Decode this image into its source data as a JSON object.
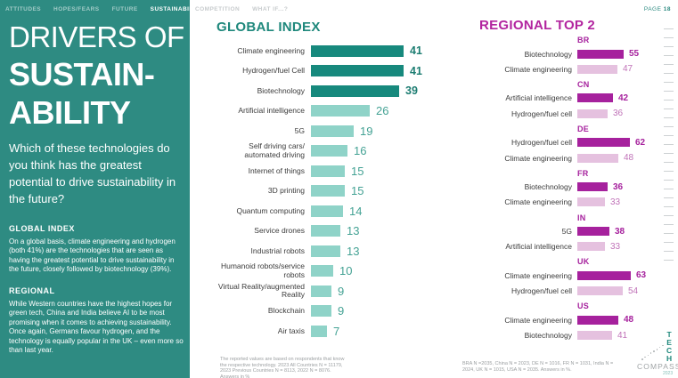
{
  "topnav": {
    "teal_tabs": [
      "ATTITUDES",
      "HOPES/FEARS",
      "FUTURE",
      "SUSTAINABILITY"
    ],
    "active_tab": "SUSTAINABILITY",
    "white_tabs": [
      "COMPETITION",
      "WHAT IF...?"
    ],
    "page_label": "PAGE",
    "page_number": "18"
  },
  "sidebar": {
    "title_line1": "DRIVERS OF",
    "title_line2": "SUSTAIN-",
    "title_line3": "ABILITY",
    "question": "Which of these technologies do you think has the greatest potential to drive sustainability in the future?",
    "global_heading": "GLOBAL INDEX",
    "global_text": "On a global basis, climate engineering and hydrogen (both 41%) are the technologies that are seen as having the greatest potential to drive sustainability in the future, closely followed by biotechnology (39%).",
    "regional_heading": "REGIONAL",
    "regional_text": "While Western countries have the highest hopes for green tech, China and India believe AI to be most promising when it comes to achieving sustainability. Once again, Germans favour hydrogen, and the technology is equally popular in the UK – even more so than last year."
  },
  "chart_data": [
    {
      "id": "global_index",
      "type": "bar",
      "orientation": "horizontal",
      "title": "GLOBAL INDEX",
      "unit": "%",
      "xlim": [
        0,
        45
      ],
      "grid": false,
      "legend": false,
      "value_labels": true,
      "emphasized_top_n": 3,
      "categories": [
        "Climate engineering",
        "Hydrogen/fuel Cell",
        "Biotechnology",
        "Artificial intelligence",
        "5G",
        "Self driving cars/\nautomated driving",
        "Internet of things",
        "3D printing",
        "Quantum computing",
        "Service drones",
        "Industrial robots",
        "Humanoid robots/service\nrobots",
        "Virtual Reality/augmented\nReality",
        "Blockchain",
        "Air taxis"
      ],
      "values": [
        41,
        41,
        39,
        26,
        19,
        16,
        15,
        15,
        14,
        13,
        13,
        10,
        9,
        9,
        7
      ],
      "footnote": "The reported values are based on respondents that know the respective technology. 2023 All Countries N = 11179, 2023 Previous Countries N = 8113, 2022 N = 8076. Answers in %"
    },
    {
      "id": "regional_top2",
      "type": "bar",
      "orientation": "horizontal",
      "title": "REGIONAL TOP 2",
      "unit": "%",
      "xlim": [
        0,
        70
      ],
      "grid": false,
      "legend": false,
      "value_labels": true,
      "groups": [
        {
          "country": "BR",
          "rows": [
            {
              "label": "Biotechnology",
              "value": 55,
              "emphasized": true
            },
            {
              "label": "Climate engineering",
              "value": 47,
              "emphasized": false
            }
          ]
        },
        {
          "country": "CN",
          "rows": [
            {
              "label": "Artificial intelligence",
              "value": 42,
              "emphasized": true
            },
            {
              "label": "Hydrogen/fuel cell",
              "value": 36,
              "emphasized": false
            }
          ]
        },
        {
          "country": "DE",
          "rows": [
            {
              "label": "Hydrogen/fuel cell",
              "value": 62,
              "emphasized": true
            },
            {
              "label": "Climate engineering",
              "value": 48,
              "emphasized": false
            }
          ]
        },
        {
          "country": "FR",
          "rows": [
            {
              "label": "Biotechnology",
              "value": 36,
              "emphasized": true
            },
            {
              "label": "Climate engineering",
              "value": 33,
              "emphasized": false
            }
          ]
        },
        {
          "country": "IN",
          "rows": [
            {
              "label": "5G",
              "value": 38,
              "emphasized": true
            },
            {
              "label": "Artificial intelligence",
              "value": 33,
              "emphasized": false
            }
          ]
        },
        {
          "country": "UK",
          "rows": [
            {
              "label": "Climate engineering",
              "value": 63,
              "emphasized": true
            },
            {
              "label": "Hydrogen/fuel cell",
              "value": 54,
              "emphasized": false
            }
          ]
        },
        {
          "country": "US",
          "rows": [
            {
              "label": "Climate engineering",
              "value": 48,
              "emphasized": true
            },
            {
              "label": "Biotechnology",
              "value": 41,
              "emphasized": false
            }
          ]
        }
      ],
      "footnote": "BRA N =2035, China N = 2023, DE N = 1016, FR N = 1031, India N = 2024, UK N = 1015, USA N = 2035. Answers in %."
    }
  ],
  "logo": {
    "tech": "TECH",
    "compass": "COMPASS",
    "year": "2023"
  },
  "colors": {
    "sidebar_teal": "#2e8b82",
    "teal_dark_bar": "#17897d",
    "teal_light_bar": "#8fd3c8",
    "magenta_dark_bar": "#a6219d",
    "magenta_light_bar": "#e5c1df",
    "regional_title": "#b2249f",
    "global_title": "#1f887c"
  }
}
